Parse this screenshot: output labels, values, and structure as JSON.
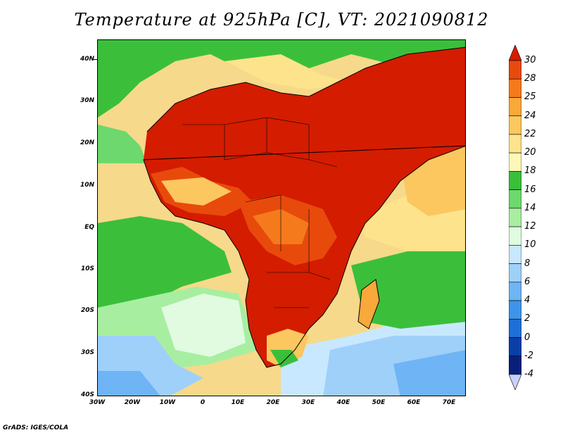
{
  "title": "Temperature at 925hPa [C], VT: 2021090812",
  "credit": "GrADS: IGES/COLA",
  "lat_labels": [
    "40N",
    "30N",
    "20N",
    "10N",
    "EQ",
    "10S",
    "20S",
    "30S",
    "40S"
  ],
  "lon_labels": [
    "30W",
    "20W",
    "10W",
    "0",
    "10E",
    "20E",
    "30E",
    "40E",
    "50E",
    "60E",
    "70E"
  ],
  "colorbar": {
    "levels": [
      "30",
      "28",
      "25",
      "24",
      "22",
      "20",
      "18",
      "16",
      "14",
      "12",
      "10",
      "8",
      "6",
      "4",
      "2",
      "0",
      "-2",
      "-4"
    ],
    "colors": [
      "#d41c00",
      "#e84a0c",
      "#f57a1c",
      "#f9a83a",
      "#fbc75e",
      "#fde38c",
      "#fff7b8",
      "#3bbf3b",
      "#6dd86d",
      "#a8eea0",
      "#e0fbe0",
      "#c8e8ff",
      "#9fd0fa",
      "#6fb4f4",
      "#3d94ea",
      "#1f6fd8",
      "#0a3fa8",
      "#08207a",
      "#c8d0ff"
    ]
  },
  "regions": {
    "ocean_default": "#f6d98a",
    "hot": "#d41c00",
    "warm": "#e84a0c"
  }
}
